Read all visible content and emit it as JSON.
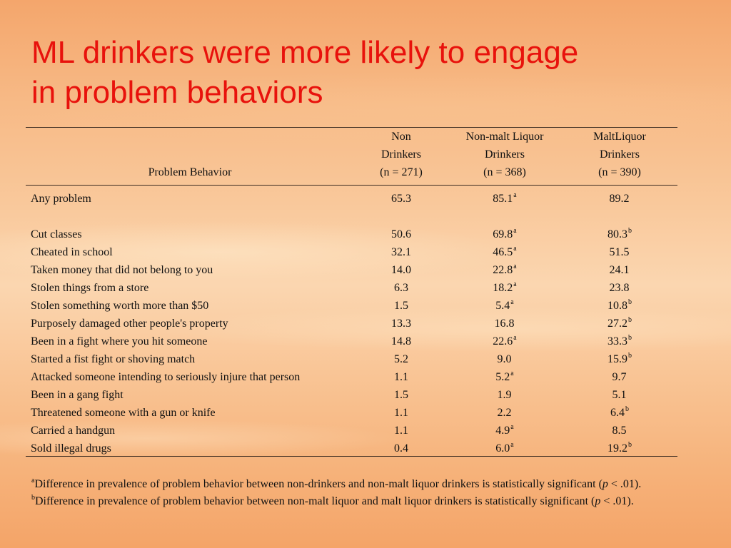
{
  "title": {
    "line1": "ML drinkers were more likely to engage",
    "line2": "in problem behaviors"
  },
  "header": {
    "problem_behavior": "Problem Behavior",
    "col1": {
      "line1": "Non",
      "line2": "Drinkers",
      "line3": "(n = 271)"
    },
    "col2": {
      "line1": "Non-malt Liquor",
      "line2": "Drinkers",
      "line3": "(n = 368)"
    },
    "col3": {
      "line1": "MaltLiquor",
      "line2": "Drinkers",
      "line3": "(n = 390)"
    }
  },
  "rows": [
    {
      "label": "Any problem",
      "v1": "65.3",
      "v2": "85.1",
      "s2": "a",
      "v3": "89.2",
      "s3": ""
    },
    {
      "label": "Cut classes",
      "v1": "50.6",
      "v2": "69.8",
      "s2": "a",
      "v3": "80.3",
      "s3": "b"
    },
    {
      "label": "Cheated in school",
      "v1": "32.1",
      "v2": "46.5",
      "s2": "a",
      "v3": "51.5",
      "s3": ""
    },
    {
      "label": "Taken money that did not belong to you",
      "v1": "14.0",
      "v2": "22.8",
      "s2": "a",
      "v3": "24.1",
      "s3": ""
    },
    {
      "label": "Stolen things from a store",
      "v1": "6.3",
      "v2": "18.2",
      "s2": "a",
      "v3": "23.8",
      "s3": ""
    },
    {
      "label": "Stolen something worth more than $50",
      "v1": "1.5",
      "v2": "5.4",
      "s2": "a",
      "v3": "10.8",
      "s3": "b"
    },
    {
      "label": "Purposely damaged other people's property",
      "v1": "13.3",
      "v2": "16.8",
      "s2": "",
      "v3": "27.2",
      "s3": "b"
    },
    {
      "label": "Been in a fight where you hit someone",
      "v1": "14.8",
      "v2": "22.6",
      "s2": "a",
      "v3": "33.3",
      "s3": "b"
    },
    {
      "label": "Started a fist fight or shoving match",
      "v1": "5.2",
      "v2": "9.0",
      "s2": "",
      "v3": "15.9",
      "s3": "b"
    },
    {
      "label": "Attacked someone intending to seriously injure that person",
      "v1": "1.1",
      "v2": "5.2",
      "s2": "a",
      "v3": "9.7",
      "s3": ""
    },
    {
      "label": "Been in a gang fight",
      "v1": "1.5",
      "v2": "1.9",
      "s2": "",
      "v3": "5.1",
      "s3": ""
    },
    {
      "label": "Threatened someone with a gun or knife",
      "v1": "1.1",
      "v2": "2.2",
      "s2": "",
      "v3": "6.4",
      "s3": "b"
    },
    {
      "label": "Carried a handgun",
      "v1": "1.1",
      "v2": "4.9",
      "s2": "a",
      "v3": "8.5",
      "s3": ""
    },
    {
      "label": "Sold illegal drugs",
      "v1": "0.4",
      "v2": "6.0",
      "s2": "a",
      "v3": "19.2",
      "s3": "b"
    }
  ],
  "notes": {
    "a": {
      "mark": "a",
      "pre": "Difference in prevalence of problem behavior between non-drinkers and non-malt liquor drinkers is statistically significant (",
      "p": "p",
      "post": " < .01)."
    },
    "b": {
      "mark": "b",
      "pre": "Difference in prevalence of problem behavior between non-malt liquor and malt liquor drinkers is statistically significant (",
      "p": "p",
      "post": " < .01)."
    }
  }
}
